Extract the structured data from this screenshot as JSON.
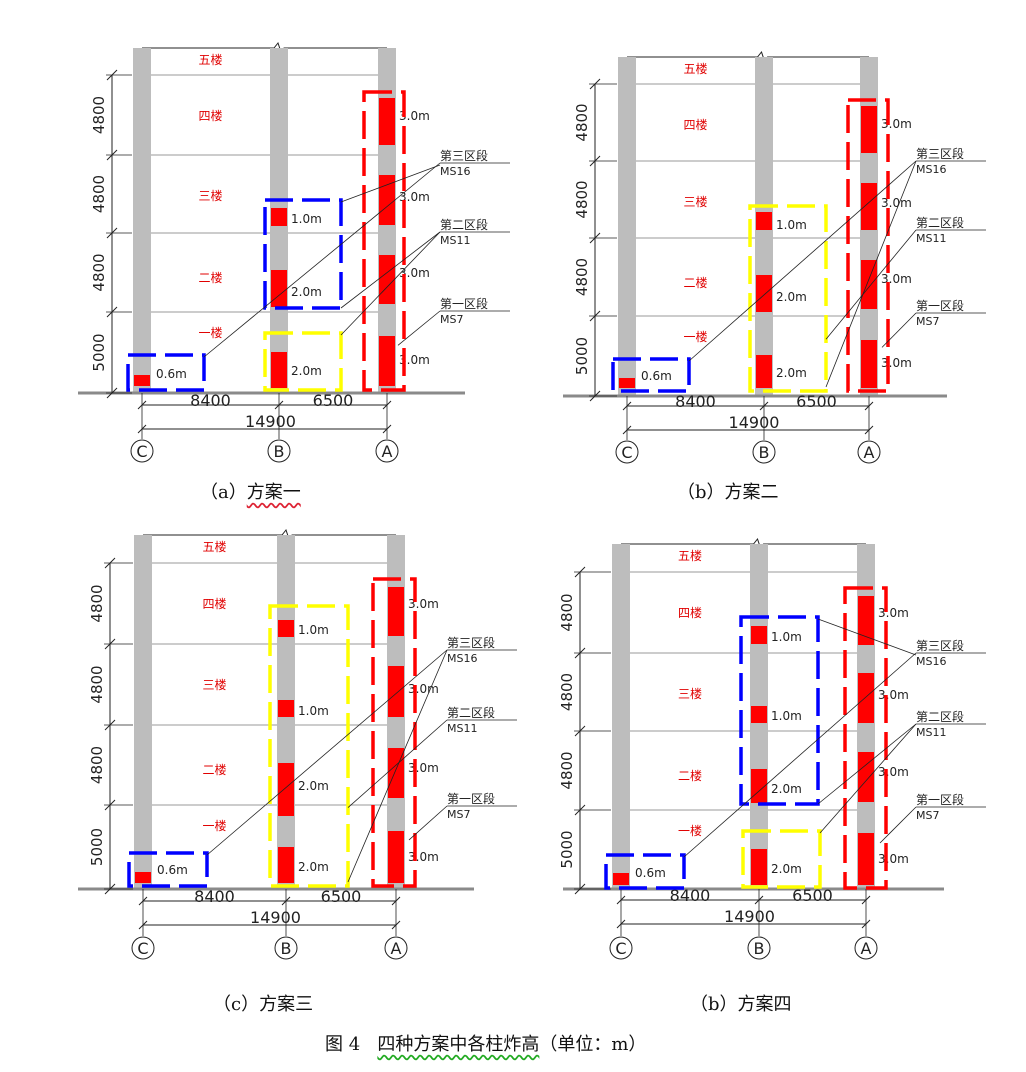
{
  "figure_title": {
    "prefix": "图 4",
    "text": "四种方案中各柱炸高",
    "unit": "（单位：m）"
  },
  "floor_labels": [
    "五楼",
    "四楼",
    "三楼",
    "二楼",
    "一楼"
  ],
  "story_heights": [
    "4800",
    "4800",
    "4800",
    "5000"
  ],
  "spans": {
    "c_to_b": "8400",
    "b_to_a": "6500",
    "total": "14900"
  },
  "axes": [
    "C",
    "B",
    "A"
  ],
  "section_labels": [
    {
      "name": "第三区段",
      "code": "MS16"
    },
    {
      "name": "第二区段",
      "code": "MS11"
    },
    {
      "name": "第一区段",
      "code": "MS7"
    }
  ],
  "panels": [
    {
      "caption_prefix": "（a）",
      "caption_name": "方案一",
      "col_c": [
        "0.6m"
      ],
      "col_b": [
        "1.0m",
        "2.0m",
        "2.0m"
      ],
      "col_a": [
        "3.0m",
        "3.0m",
        "3.0m",
        "3.0m"
      ]
    },
    {
      "caption_prefix": "（b）",
      "caption_name": "方案二",
      "col_c": [
        "0.6m"
      ],
      "col_b": [
        "1.0m",
        "2.0m",
        "2.0m"
      ],
      "col_a": [
        "3.0m",
        "3.0m",
        "3.0m",
        "3.0m"
      ]
    },
    {
      "caption_prefix": "（c）",
      "caption_name": "方案三",
      "col_c": [
        "0.6m"
      ],
      "col_b": [
        "1.0m",
        "1.0m",
        "2.0m",
        "2.0m"
      ],
      "col_a": [
        "3.0m",
        "3.0m",
        "3.0m",
        "3.0m"
      ]
    },
    {
      "caption_prefix": "（b）",
      "caption_name": "方案四",
      "col_c": [
        "0.6m"
      ],
      "col_b": [
        "1.0m",
        "1.0m",
        "2.0m",
        "2.0m"
      ],
      "col_a": [
        "3.0m",
        "3.0m",
        "3.0m",
        "3.0m"
      ]
    }
  ],
  "colors": {
    "column": "#bdbdbd",
    "charge": "#ff0000",
    "floor_text": "#e00000",
    "section_first": "#ffff00",
    "section_second": "#0000ff",
    "section_third": "#ff0000",
    "ground": "#8a8a8a"
  }
}
